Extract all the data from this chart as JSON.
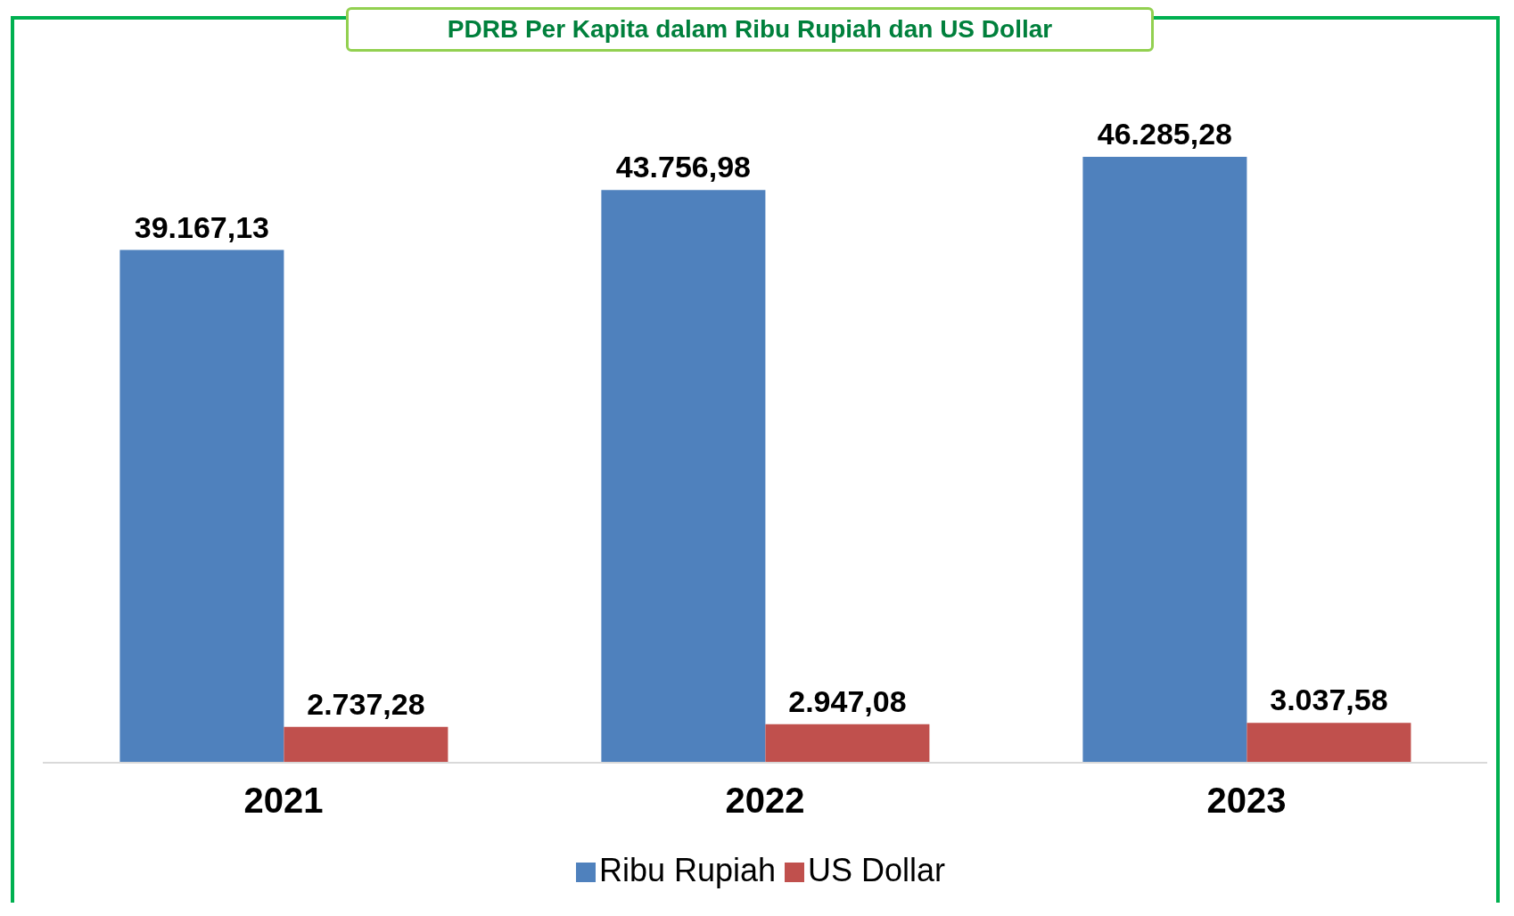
{
  "chart_data": {
    "type": "bar",
    "title": "PDRB Per Kapita dalam Ribu Rupiah dan US Dollar",
    "categories": [
      "2021",
      "2022",
      "2023"
    ],
    "series": [
      {
        "name": "Ribu Rupiah",
        "color": "#4f81bd",
        "values": [
          39167.13,
          43756.98,
          46285.28
        ],
        "value_labels": [
          "39.167,13",
          "43.756,98",
          "46.285,28"
        ]
      },
      {
        "name": "US Dollar",
        "color": "#c0504d",
        "values": [
          2737.28,
          2947.08,
          3037.58
        ],
        "value_labels": [
          "2.737,28",
          "2.947,08",
          "3.037,58"
        ]
      }
    ],
    "legend": "bottom",
    "grid": false
  }
}
